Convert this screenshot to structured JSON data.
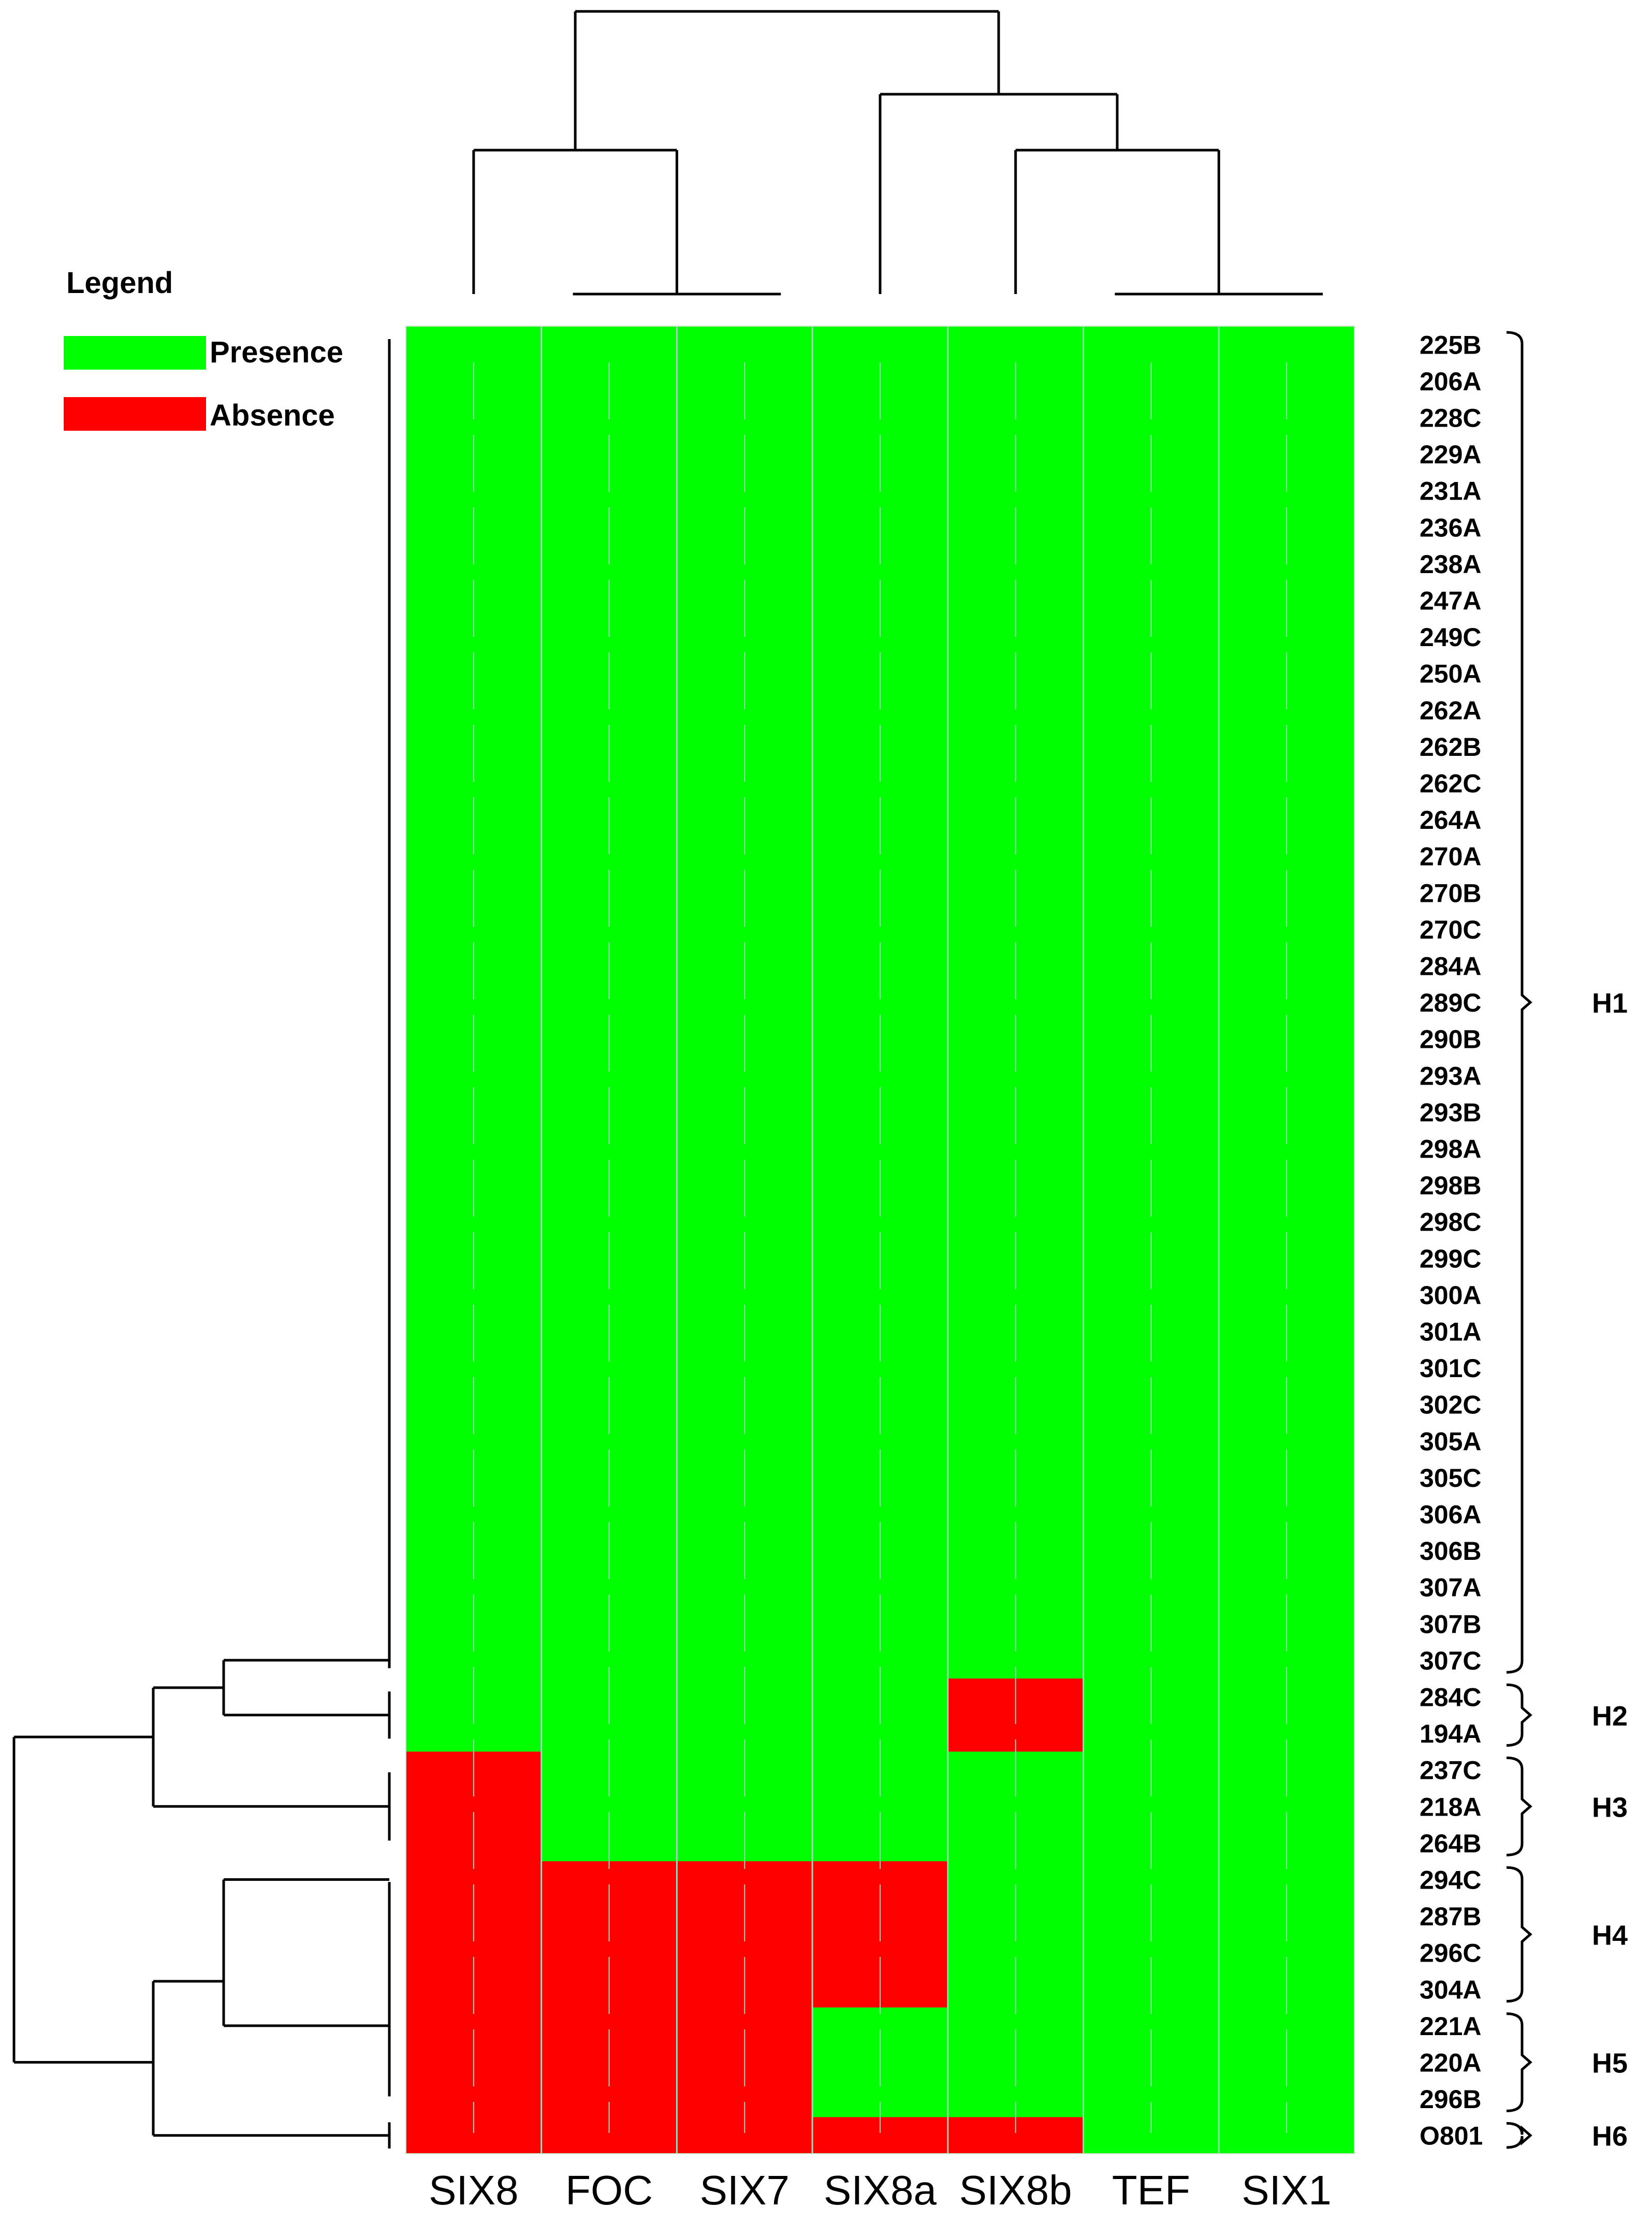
{
  "legend": {
    "title": "Legend",
    "items": [
      {
        "label": "Presence",
        "color": "#00ff00"
      },
      {
        "label": "Absence",
        "color": "#ff0000"
      }
    ]
  },
  "chart_data": {
    "type": "heatmap",
    "columns": [
      "SIX8",
      "FOC",
      "SIX7",
      "SIX8a",
      "SIX8b",
      "TEF",
      "SIX1"
    ],
    "rows": [
      "225B",
      "206A",
      "228C",
      "229A",
      "231A",
      "236A",
      "238A",
      "247A",
      "249C",
      "250A",
      "262A",
      "262B",
      "262C",
      "264A",
      "270A",
      "270B",
      "270C",
      "284A",
      "289C",
      "290B",
      "293A",
      "293B",
      "298A",
      "298B",
      "298C",
      "299C",
      "300A",
      "301A",
      "301C",
      "302C",
      "305A",
      "305C",
      "306A",
      "306B",
      "307A",
      "307B",
      "307C",
      "284C",
      "194A",
      "237C",
      "218A",
      "264B",
      "294C",
      "287B",
      "296C",
      "304A",
      "221A",
      "220A",
      "296B",
      "O801"
    ],
    "values": [
      [
        1,
        1,
        1,
        1,
        1,
        1,
        1
      ],
      [
        1,
        1,
        1,
        1,
        1,
        1,
        1
      ],
      [
        1,
        1,
        1,
        1,
        1,
        1,
        1
      ],
      [
        1,
        1,
        1,
        1,
        1,
        1,
        1
      ],
      [
        1,
        1,
        1,
        1,
        1,
        1,
        1
      ],
      [
        1,
        1,
        1,
        1,
        1,
        1,
        1
      ],
      [
        1,
        1,
        1,
        1,
        1,
        1,
        1
      ],
      [
        1,
        1,
        1,
        1,
        1,
        1,
        1
      ],
      [
        1,
        1,
        1,
        1,
        1,
        1,
        1
      ],
      [
        1,
        1,
        1,
        1,
        1,
        1,
        1
      ],
      [
        1,
        1,
        1,
        1,
        1,
        1,
        1
      ],
      [
        1,
        1,
        1,
        1,
        1,
        1,
        1
      ],
      [
        1,
        1,
        1,
        1,
        1,
        1,
        1
      ],
      [
        1,
        1,
        1,
        1,
        1,
        1,
        1
      ],
      [
        1,
        1,
        1,
        1,
        1,
        1,
        1
      ],
      [
        1,
        1,
        1,
        1,
        1,
        1,
        1
      ],
      [
        1,
        1,
        1,
        1,
        1,
        1,
        1
      ],
      [
        1,
        1,
        1,
        1,
        1,
        1,
        1
      ],
      [
        1,
        1,
        1,
        1,
        1,
        1,
        1
      ],
      [
        1,
        1,
        1,
        1,
        1,
        1,
        1
      ],
      [
        1,
        1,
        1,
        1,
        1,
        1,
        1
      ],
      [
        1,
        1,
        1,
        1,
        1,
        1,
        1
      ],
      [
        1,
        1,
        1,
        1,
        1,
        1,
        1
      ],
      [
        1,
        1,
        1,
        1,
        1,
        1,
        1
      ],
      [
        1,
        1,
        1,
        1,
        1,
        1,
        1
      ],
      [
        1,
        1,
        1,
        1,
        1,
        1,
        1
      ],
      [
        1,
        1,
        1,
        1,
        1,
        1,
        1
      ],
      [
        1,
        1,
        1,
        1,
        1,
        1,
        1
      ],
      [
        1,
        1,
        1,
        1,
        1,
        1,
        1
      ],
      [
        1,
        1,
        1,
        1,
        1,
        1,
        1
      ],
      [
        1,
        1,
        1,
        1,
        1,
        1,
        1
      ],
      [
        1,
        1,
        1,
        1,
        1,
        1,
        1
      ],
      [
        1,
        1,
        1,
        1,
        1,
        1,
        1
      ],
      [
        1,
        1,
        1,
        1,
        1,
        1,
        1
      ],
      [
        1,
        1,
        1,
        1,
        1,
        1,
        1
      ],
      [
        1,
        1,
        1,
        1,
        1,
        1,
        1
      ],
      [
        1,
        1,
        1,
        1,
        1,
        1,
        1
      ],
      [
        1,
        1,
        1,
        1,
        0,
        1,
        1
      ],
      [
        1,
        1,
        1,
        1,
        0,
        1,
        1
      ],
      [
        0,
        1,
        1,
        1,
        1,
        1,
        1
      ],
      [
        0,
        1,
        1,
        1,
        1,
        1,
        1
      ],
      [
        0,
        1,
        1,
        1,
        1,
        1,
        1
      ],
      [
        0,
        0,
        0,
        0,
        1,
        1,
        1
      ],
      [
        0,
        0,
        0,
        0,
        1,
        1,
        1
      ],
      [
        0,
        0,
        0,
        0,
        1,
        1,
        1
      ],
      [
        0,
        0,
        0,
        0,
        1,
        1,
        1
      ],
      [
        0,
        0,
        0,
        1,
        1,
        1,
        1
      ],
      [
        0,
        0,
        0,
        1,
        1,
        1,
        1
      ],
      [
        0,
        0,
        0,
        1,
        1,
        1,
        1
      ],
      [
        0,
        0,
        0,
        0,
        0,
        1,
        1
      ]
    ],
    "groups": [
      {
        "label": "H1",
        "from": 0,
        "to": 36
      },
      {
        "label": "H2",
        "from": 37,
        "to": 38
      },
      {
        "label": "H3",
        "from": 39,
        "to": 41
      },
      {
        "label": "H4",
        "from": 42,
        "to": 45
      },
      {
        "label": "H5",
        "from": 46,
        "to": 48
      },
      {
        "label": "H6",
        "from": 49,
        "to": 49
      }
    ],
    "grid": true
  }
}
